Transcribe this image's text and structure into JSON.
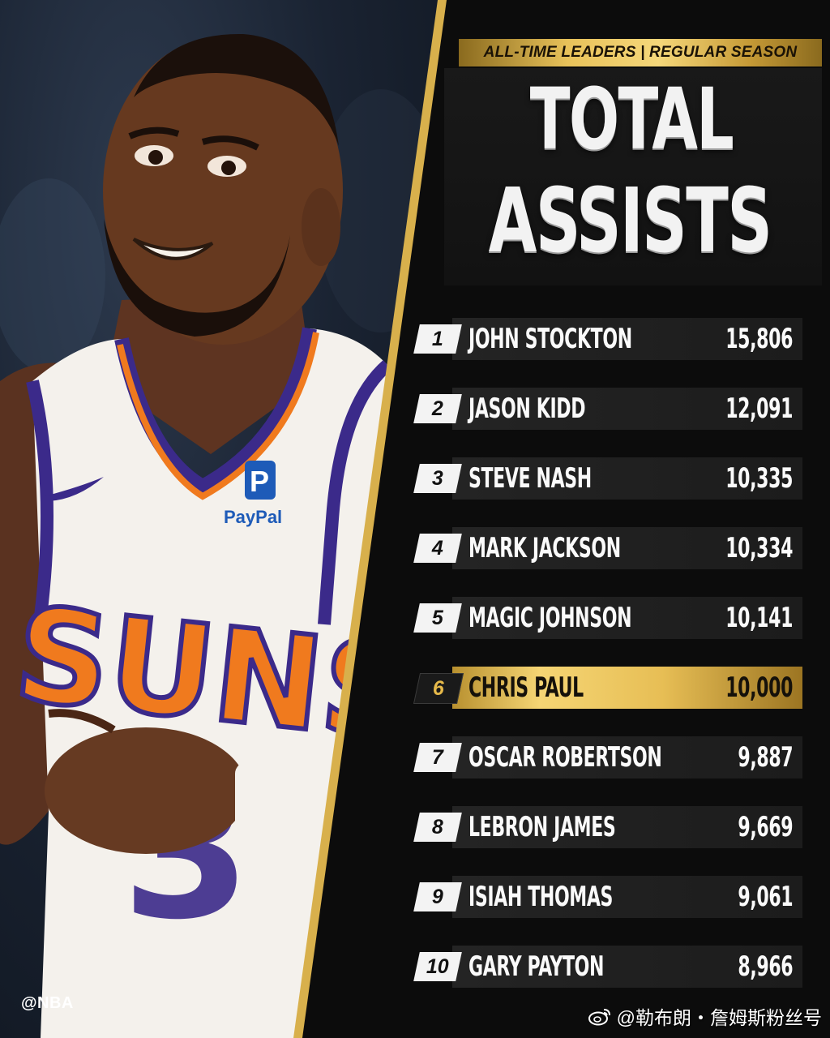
{
  "header": {
    "label": "ALL-TIME LEADERS | REGULAR SEASON"
  },
  "title": {
    "line1": "TOTAL",
    "line2": "ASSISTS"
  },
  "leaders": [
    {
      "rank": "1",
      "name": "JOHN STOCKTON",
      "total": "15,806"
    },
    {
      "rank": "2",
      "name": "JASON KIDD",
      "total": "12,091"
    },
    {
      "rank": "3",
      "name": "STEVE NASH",
      "total": "10,335"
    },
    {
      "rank": "4",
      "name": "MARK JACKSON",
      "total": "10,334"
    },
    {
      "rank": "5",
      "name": "MAGIC JOHNSON",
      "total": "10,141"
    },
    {
      "rank": "6",
      "name": "CHRIS PAUL",
      "total": "10,000",
      "highlighted": true
    },
    {
      "rank": "7",
      "name": "OSCAR ROBERTSON",
      "total": "9,887"
    },
    {
      "rank": "8",
      "name": "LEBRON JAMES",
      "total": "9,669"
    },
    {
      "rank": "9",
      "name": "ISIAH THOMAS",
      "total": "9,061"
    },
    {
      "rank": "10",
      "name": "GARY PAYTON",
      "total": "8,966"
    }
  ],
  "jersey": {
    "team": "SUNS",
    "number": "3",
    "sponsor": "PayPal"
  },
  "credit": "@NBA",
  "weibo_watermark": "@勒布朗・詹姆斯粉丝号",
  "colors": {
    "gold": "#e8c25a",
    "background": "#0b0b0d",
    "jersey_orange": "#f07a1e",
    "jersey_purple": "#3b2a8a"
  }
}
